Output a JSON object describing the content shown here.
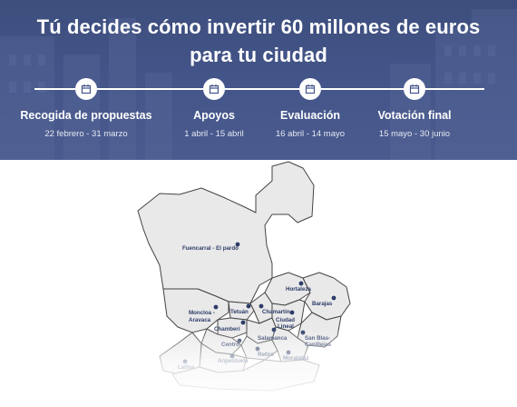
{
  "hero": {
    "title_line1": "Tú decides cómo invertir 60 millones de euros",
    "title_line2": "para tu ciudad"
  },
  "phases": [
    {
      "name": "Recogida de propuestas",
      "dates": "22 febrero - 31 marzo",
      "icon": "calendar-icon"
    },
    {
      "name": "Apoyos",
      "dates": "1 abril - 15 abril",
      "icon": "calendar-icon"
    },
    {
      "name": "Evaluación",
      "dates": "16 abril - 14 mayo",
      "icon": "calendar-icon"
    },
    {
      "name": "Votación final",
      "dates": "15 mayo - 30 junio",
      "icon": "calendar-icon"
    }
  ],
  "map": {
    "districts": {
      "fuencarral": "Fuencarral - El pardo",
      "hortaleza": "Hortaleza",
      "barajas": "Barajas",
      "moncloa_1": "Moncloa -",
      "moncloa_2": "Aravaca",
      "tetuan": "Tetuán",
      "chamartin": "Chamartín",
      "ciudad_lineal_1": "Ciudad",
      "ciudad_lineal_2": "Lineal",
      "chamberi": "Chamberí",
      "salamanca": "Salamanca",
      "san_blas_1": "San Blas-",
      "san_blas_2": "Canillejas",
      "centro": "Centro",
      "arganzuela": "Arganzuela",
      "retiro": "Retiro",
      "moratalaz": "Moratalaz",
      "latina": "Latina"
    },
    "colors": {
      "fill": "#e9e9ea",
      "stroke": "#444444",
      "marker": "#2c3c66",
      "hero": "#44558a"
    }
  }
}
